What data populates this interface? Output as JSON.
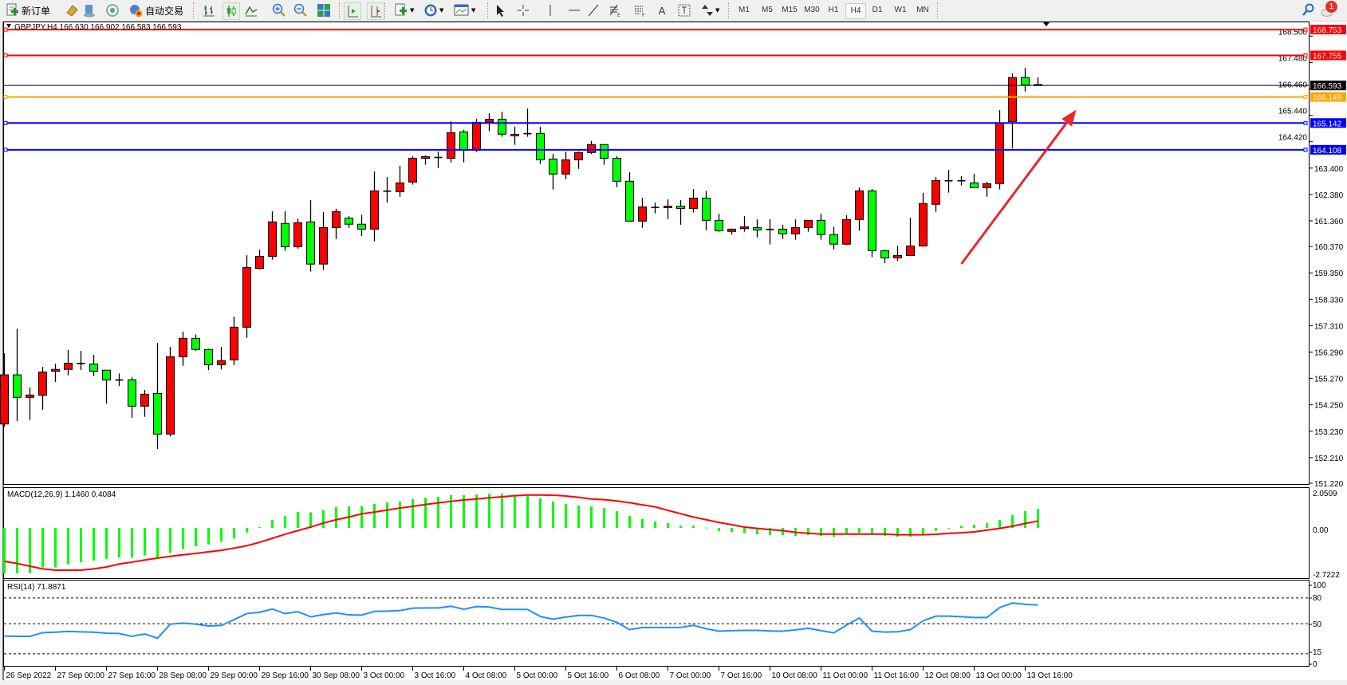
{
  "toolbar": {
    "new_order_label": "新订单",
    "autotrading_label": "自动交易",
    "icons": [
      "new-order-icon",
      "market-watch-icon",
      "navigator-icon",
      "signals-icon",
      "autotrading-icon",
      "bar-chart-icon",
      "candlestick-icon",
      "line-chart-icon",
      "zoom-in-icon",
      "zoom-out-icon",
      "tile-windows-icon",
      "autoscroll-icon",
      "chart-shift-icon",
      "indicators-icon",
      "periods-icon",
      "templates-icon",
      "cursor-icon",
      "crosshair-icon",
      "vertical-line-icon",
      "horizontal-line-icon",
      "trendline-icon",
      "fibonacci-icon",
      "fibonacci-fan-icon",
      "text-icon",
      "text-label-icon",
      "arrows-icon",
      "search-icon",
      "notifications-icon"
    ],
    "periods": [
      "M1",
      "M5",
      "M15",
      "M30",
      "H1",
      "H4",
      "D1",
      "W1",
      "MN"
    ],
    "active_period": "H4",
    "notification_count": "1"
  },
  "chart": {
    "title": "GBPJPY,H4  166.630 166.902 166.583 166.593",
    "macd_label": "MACD(12,26,9) 1.1460 0.4084",
    "rsi_label": "RSI(14) 71.8871"
  },
  "chart_data": {
    "type": "candlestick",
    "symbol": "GBPJPY",
    "timeframe": "H4",
    "colors": {
      "up": "#ff0000",
      "down": "#00ff00",
      "macd_hist": "#00ff00",
      "macd_signal": "#ff0000",
      "rsi": "#1e90ff"
    },
    "ohlc": [
      [
        153.51,
        156.25,
        153.41,
        155.41
      ],
      [
        155.41,
        157.19,
        153.63,
        154.54
      ],
      [
        154.54,
        154.92,
        153.67,
        154.63
      ],
      [
        154.62,
        155.72,
        154.06,
        155.52
      ],
      [
        155.55,
        155.84,
        155.13,
        155.62
      ],
      [
        155.62,
        156.37,
        155.39,
        155.86
      ],
      [
        155.84,
        156.34,
        155.6,
        155.85
      ],
      [
        155.83,
        156.18,
        155.36,
        155.55
      ],
      [
        155.59,
        155.6,
        154.3,
        155.21
      ],
      [
        155.21,
        155.46,
        154.98,
        155.2
      ],
      [
        155.22,
        155.31,
        153.75,
        154.2
      ],
      [
        154.2,
        154.83,
        153.79,
        154.66
      ],
      [
        154.69,
        156.64,
        152.54,
        153.12
      ],
      [
        153.12,
        156.49,
        153.03,
        156.11
      ],
      [
        156.11,
        157.08,
        155.76,
        156.82
      ],
      [
        156.82,
        156.97,
        156.34,
        156.39
      ],
      [
        156.39,
        156.42,
        155.59,
        155.8
      ],
      [
        155.8,
        156.49,
        155.62,
        155.96
      ],
      [
        155.99,
        157.66,
        155.79,
        157.25
      ],
      [
        157.25,
        160.03,
        156.84,
        159.56
      ],
      [
        159.52,
        160.25,
        159.49,
        159.99
      ],
      [
        159.99,
        161.73,
        159.86,
        161.32
      ],
      [
        161.26,
        161.73,
        160.2,
        160.36
      ],
      [
        160.36,
        161.45,
        160.29,
        161.29
      ],
      [
        161.32,
        162.16,
        159.4,
        159.69
      ],
      [
        159.69,
        161.7,
        159.46,
        161.1
      ],
      [
        161.1,
        161.82,
        160.65,
        161.72
      ],
      [
        161.47,
        161.54,
        161.09,
        161.23
      ],
      [
        161.23,
        161.59,
        160.77,
        161.04
      ],
      [
        161.04,
        163.27,
        160.57,
        162.52
      ],
      [
        162.51,
        163.05,
        162.07,
        162.5
      ],
      [
        162.49,
        163.49,
        162.29,
        162.83
      ],
      [
        162.86,
        163.86,
        162.76,
        163.78
      ],
      [
        163.78,
        163.89,
        163.53,
        163.84
      ],
      [
        163.8,
        164.04,
        163.4,
        163.81
      ],
      [
        163.78,
        165.21,
        163.62,
        164.77
      ],
      [
        164.8,
        164.88,
        163.62,
        164.09
      ],
      [
        164.09,
        165.3,
        164.02,
        165.17
      ],
      [
        165.18,
        165.52,
        164.82,
        165.29
      ],
      [
        165.29,
        165.58,
        164.61,
        164.71
      ],
      [
        164.65,
        165.0,
        164.3,
        164.7
      ],
      [
        164.73,
        165.7,
        164.61,
        164.73
      ],
      [
        164.74,
        165.0,
        163.56,
        163.72
      ],
      [
        163.75,
        163.95,
        162.57,
        163.17
      ],
      [
        163.17,
        164.04,
        162.97,
        163.72
      ],
      [
        163.72,
        164.04,
        163.37,
        164.0
      ],
      [
        164.0,
        164.45,
        163.94,
        164.31
      ],
      [
        164.31,
        164.31,
        163.53,
        163.78
      ],
      [
        163.78,
        163.86,
        162.66,
        162.89
      ],
      [
        162.89,
        163.24,
        161.35,
        161.35
      ],
      [
        161.35,
        162.25,
        161.09,
        161.9
      ],
      [
        161.88,
        162.07,
        161.65,
        161.88
      ],
      [
        161.87,
        162.19,
        161.43,
        161.93
      ],
      [
        161.93,
        162.16,
        161.21,
        161.84
      ],
      [
        161.84,
        162.59,
        161.68,
        162.24
      ],
      [
        162.24,
        162.52,
        161.0,
        161.38
      ],
      [
        161.38,
        161.63,
        160.94,
        160.98
      ],
      [
        160.95,
        161.06,
        160.83,
        161.04
      ],
      [
        161.06,
        161.54,
        160.94,
        161.13
      ],
      [
        161.1,
        161.42,
        160.72,
        161.01
      ],
      [
        161.03,
        161.42,
        160.45,
        161.03
      ],
      [
        161.04,
        161.2,
        160.66,
        160.86
      ],
      [
        160.86,
        161.42,
        160.63,
        161.1
      ],
      [
        161.1,
        161.38,
        160.94,
        161.38
      ],
      [
        161.38,
        161.63,
        160.63,
        160.83
      ],
      [
        160.83,
        161.13,
        160.26,
        160.46
      ],
      [
        160.46,
        161.58,
        160.42,
        161.41
      ],
      [
        161.41,
        162.65,
        160.98,
        162.52
      ],
      [
        162.52,
        162.59,
        159.96,
        160.21
      ],
      [
        160.21,
        160.24,
        159.72,
        159.93
      ],
      [
        159.93,
        160.4,
        159.81,
        160.02
      ],
      [
        160.02,
        161.48,
        160.02,
        160.39
      ],
      [
        160.39,
        162.44,
        160.36,
        162.03
      ],
      [
        162.0,
        163.05,
        161.71,
        162.92
      ],
      [
        162.91,
        163.33,
        162.45,
        162.91
      ],
      [
        162.91,
        163.09,
        162.73,
        162.91
      ],
      [
        162.83,
        163.18,
        162.64,
        162.64
      ],
      [
        162.64,
        162.86,
        162.29,
        162.8
      ],
      [
        162.8,
        165.64,
        162.58,
        165.14
      ],
      [
        165.2,
        167.06,
        164.16,
        166.9
      ],
      [
        166.9,
        167.28,
        166.36,
        166.61
      ],
      [
        166.63,
        166.902,
        166.583,
        166.593
      ]
    ],
    "macd_hist": [
      -2.73,
      -2.73,
      -2.7,
      -2.37,
      -2.37,
      -2.18,
      -2.05,
      -1.95,
      -1.85,
      -1.77,
      -1.77,
      -1.65,
      -1.77,
      -1.5,
      -1.27,
      -1.1,
      -0.99,
      -0.83,
      -0.64,
      -0.27,
      0.05,
      0.48,
      0.72,
      0.95,
      0.93,
      1.05,
      1.24,
      1.29,
      1.29,
      1.43,
      1.53,
      1.58,
      1.72,
      1.81,
      1.86,
      1.96,
      1.96,
      2.0,
      2.05,
      2.05,
      1.91,
      1.91,
      1.77,
      1.58,
      1.43,
      1.34,
      1.29,
      1.19,
      1.0,
      0.72,
      0.53,
      0.38,
      0.29,
      0.13,
      0.13,
      0.02,
      -0.19,
      -0.24,
      -0.32,
      -0.38,
      -0.43,
      -0.43,
      -0.48,
      -0.43,
      -0.48,
      -0.53,
      -0.32,
      -0.29,
      -0.32,
      -0.48,
      -0.53,
      -0.53,
      -0.38,
      -0.19,
      -0.03,
      0.13,
      0.19,
      0.29,
      0.47,
      0.76,
      1.0,
      1.146
    ],
    "macd_signal": [
      -2.0,
      -2.13,
      -2.29,
      -2.45,
      -2.53,
      -2.53,
      -2.53,
      -2.45,
      -2.34,
      -2.16,
      -2.05,
      -1.92,
      -1.81,
      -1.7,
      -1.61,
      -1.53,
      -1.43,
      -1.34,
      -1.21,
      -1.07,
      -0.86,
      -0.62,
      -0.38,
      -0.16,
      0.05,
      0.29,
      0.49,
      0.65,
      0.84,
      0.95,
      1.07,
      1.19,
      1.29,
      1.4,
      1.5,
      1.59,
      1.67,
      1.73,
      1.8,
      1.86,
      1.93,
      1.97,
      1.97,
      1.96,
      1.91,
      1.83,
      1.73,
      1.69,
      1.61,
      1.51,
      1.38,
      1.26,
      1.05,
      0.85,
      0.65,
      0.49,
      0.33,
      0.19,
      0.05,
      -0.03,
      -0.1,
      -0.16,
      -0.27,
      -0.32,
      -0.37,
      -0.37,
      -0.37,
      -0.37,
      -0.37,
      -0.37,
      -0.41,
      -0.41,
      -0.41,
      -0.38,
      -0.33,
      -0.29,
      -0.24,
      -0.13,
      -0.03,
      0.1,
      0.27,
      0.4084
    ],
    "rsi": [
      35.6,
      35.3,
      35.3,
      39.6,
      40.2,
      41.1,
      40.5,
      40.2,
      38.9,
      38.6,
      35.3,
      38.0,
      33.1,
      49.5,
      50.7,
      49.5,
      47.3,
      47.9,
      54.7,
      61.8,
      63.4,
      67.1,
      61.8,
      64.0,
      58.1,
      60.6,
      62.5,
      60.3,
      60.0,
      64.4,
      64.7,
      65.3,
      68.1,
      68.4,
      68.4,
      70.3,
      66.9,
      70.0,
      69.4,
      66.6,
      66.6,
      66.6,
      58.4,
      55.3,
      57.8,
      59.7,
      59.7,
      56.6,
      51.6,
      43.1,
      45.6,
      45.6,
      45.6,
      45.6,
      48.1,
      44.1,
      41.3,
      41.9,
      42.2,
      42.2,
      41.6,
      41.3,
      42.8,
      44.7,
      41.9,
      39.4,
      48.4,
      56.6,
      41.3,
      40.3,
      40.6,
      43.1,
      53.4,
      58.8,
      58.8,
      58.1,
      57.2,
      57.2,
      68.8,
      74.1,
      72.5,
      71.8871
    ],
    "price_axis": {
      "ylim": [
        151.22,
        168.9
      ],
      "ticks": [
        "168.500",
        "167.480",
        "166.460",
        "165.440",
        "164.420",
        "163.400",
        "162.380",
        "161.360",
        "160.370",
        "159.350",
        "158.330",
        "157.310",
        "156.290",
        "155.270",
        "154.250",
        "153.230",
        "152.210",
        "151.220"
      ]
    },
    "levels": [
      {
        "price": "168.753",
        "color": "#ff0000"
      },
      {
        "price": "167.755",
        "color": "#ff0000"
      },
      {
        "price": "166.593",
        "color": "#000000"
      },
      {
        "price": "166.149",
        "color": "#ffa500"
      },
      {
        "price": "165.142",
        "color": "#0000ff"
      },
      {
        "price": "164.108",
        "color": "#0000ff"
      }
    ],
    "macd_axis": {
      "ticks": [
        "2.0509",
        "0.00",
        "-2.7222"
      ]
    },
    "rsi_axis": {
      "ticks": [
        "100",
        "80",
        "50",
        "15",
        "0"
      ],
      "levels": [
        80,
        50,
        15
      ]
    },
    "time_axis": {
      "labels": [
        "26 Sep 2022",
        "27 Sep 00:00",
        "27 Sep 16:00",
        "28 Sep 08:00",
        "29 Sep 00:00",
        "29 Sep 16:00",
        "30 Sep 08:00",
        "3 Oct 00:00",
        "3 Oct 16:00",
        "4 Oct 08:00",
        "5 Oct 00:00",
        "5 Oct 16:00",
        "6 Oct 08:00",
        "7 Oct 00:00",
        "7 Oct 16:00",
        "10 Oct 08:00",
        "11 Oct 00:00",
        "11 Oct 16:00",
        "12 Oct 08:00",
        "13 Oct 00:00",
        "13 Oct 16:00"
      ]
    },
    "annotation": {
      "type": "arrow",
      "color": "#e8262d",
      "from": {
        "bar": 75,
        "price": 159.7
      },
      "to": {
        "bar": 84,
        "price": 165.65
      }
    }
  }
}
